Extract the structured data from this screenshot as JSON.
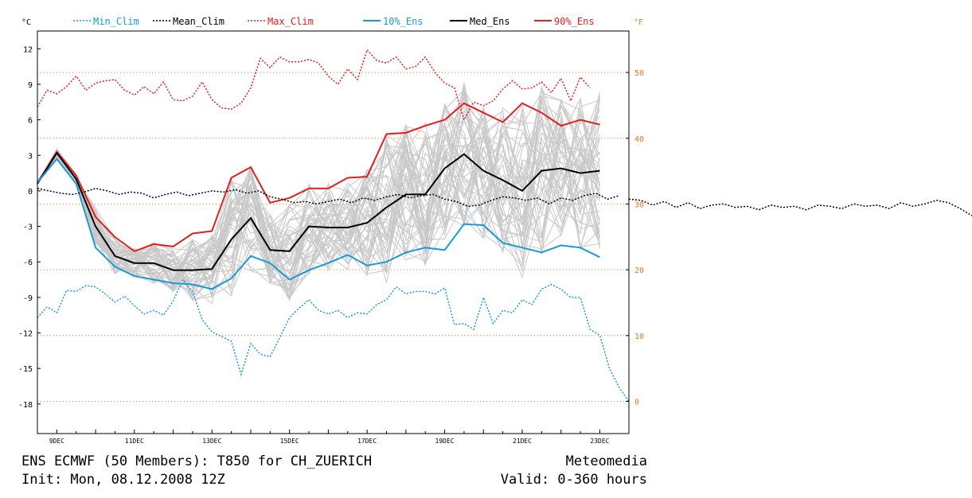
{
  "chart_data": {
    "type": "line",
    "title": "ENS ECMWF (50 Members): T850 for CH_ZUERICH",
    "ylabel_left": "°C",
    "ylabel_right": "°F",
    "ylim": [
      -20.5,
      13.5
    ],
    "xlim": [
      8.5,
      23.75
    ],
    "y_ticks": [
      12,
      9,
      6,
      3,
      0,
      -3,
      -6,
      -9,
      -12,
      -15,
      -18
    ],
    "y_ticks_f": [
      50,
      40,
      30,
      20,
      10,
      0
    ],
    "x_ticks": [
      {
        "label": "9DEC",
        "x": 9
      },
      {
        "label": "11DEC",
        "x": 11
      },
      {
        "label": "13DEC",
        "x": 13
      },
      {
        "label": "15DEC",
        "x": 15
      },
      {
        "label": "17DEC",
        "x": 17
      },
      {
        "label": "19DEC",
        "x": 19
      },
      {
        "label": "21DEC",
        "x": 21
      },
      {
        "label": "23DEC",
        "x": 23
      }
    ],
    "legend": [
      {
        "key": "min_clim",
        "label": "Min_Clim",
        "color": "#1a9ad6",
        "dash": true
      },
      {
        "key": "mean_clim",
        "label": "Mean_Clim",
        "color": "#000000",
        "dash": true
      },
      {
        "key": "max_clim",
        "label": "Max_Clim",
        "color": "#e02020",
        "dash": true
      },
      {
        "key": "p10",
        "label": "10%_Ens",
        "color": "#1a9ad6",
        "dash": false
      },
      {
        "key": "median",
        "label": "Med_Ens",
        "color": "#000000",
        "dash": false
      },
      {
        "key": "p90",
        "label": "90%_Ens",
        "color": "#e02020",
        "dash": false
      }
    ],
    "ens_x": [
      8.5,
      9.0,
      9.5,
      10.0,
      10.5,
      11.0,
      11.5,
      12.0,
      12.5,
      13.0,
      13.5,
      14.0,
      14.5,
      15.0,
      15.5,
      16.0,
      16.5,
      17.0,
      17.5,
      18.0,
      18.5,
      19.0,
      19.5,
      20.0,
      20.5,
      21.0,
      21.5,
      22.0,
      22.5,
      23.0
    ],
    "series": [
      {
        "name": "90%_Ens",
        "values": [
          0.7,
          3.3,
          1.3,
          -2.2,
          -3.9,
          -5.1,
          -4.5,
          -4.7,
          -3.6,
          -3.4,
          1.1,
          2.0,
          -1.0,
          -0.6,
          0.2,
          0.2,
          1.1,
          1.2,
          4.8,
          4.9,
          5.5,
          6.0,
          7.4,
          6.6,
          5.8,
          7.4,
          6.6,
          5.5,
          6.0,
          5.6
        ]
      },
      {
        "name": "Med_Ens",
        "values": [
          0.6,
          3.2,
          1.0,
          -3.0,
          -5.5,
          -6.1,
          -6.1,
          -6.7,
          -6.7,
          -6.6,
          -4.1,
          -2.3,
          -5.0,
          -5.1,
          -3.0,
          -3.1,
          -3.1,
          -2.7,
          -1.4,
          -0.3,
          -0.3,
          1.9,
          3.1,
          1.7,
          0.9,
          0.0,
          1.7,
          1.9,
          1.5,
          1.7
        ]
      },
      {
        "name": "10%_Ens",
        "values": [
          0.7,
          2.7,
          0.6,
          -4.8,
          -6.4,
          -7.2,
          -7.5,
          -7.8,
          -7.9,
          -8.3,
          -7.4,
          -5.5,
          -6.1,
          -7.5,
          -6.7,
          -6.1,
          -5.4,
          -6.3,
          -6.0,
          -5.2,
          -4.8,
          -5.0,
          -2.8,
          -2.9,
          -4.4,
          -4.8,
          -5.2,
          -4.6,
          -4.8,
          -5.6
        ]
      },
      {
        "name": "Max_Clim",
        "values": [
          7.1,
          8.5,
          8.2,
          8.8,
          9.7,
          8.5,
          9.1,
          9.3,
          9.4,
          8.5,
          8.1,
          8.8,
          8.2,
          9.2,
          7.7,
          7.6,
          8.0,
          9.2,
          7.7,
          7.0,
          6.9,
          7.4,
          8.7,
          11.2,
          10.4,
          11.3,
          10.9,
          10.9,
          11.1,
          10.8,
          9.7,
          9.0,
          10.3,
          9.4,
          11.9,
          11.0,
          10.8,
          11.3,
          10.3,
          10.5,
          11.3,
          10.0,
          9.1,
          8.7,
          6.0,
          7.5,
          7.2,
          7.6,
          8.6,
          9.3,
          8.6,
          8.7,
          9.2,
          8.3,
          9.5,
          7.6,
          9.6,
          8.7
        ]
      },
      {
        "name": "Mean_Clim",
        "values": [
          0.2,
          0.0,
          -0.2,
          -0.3,
          -0.1,
          0.2,
          0.0,
          -0.3,
          -0.1,
          -0.2,
          -0.6,
          -0.3,
          -0.1,
          -0.4,
          -0.2,
          0.0,
          -0.1,
          0.1,
          -0.2,
          0.0,
          -0.5,
          -0.7,
          -1.0,
          -0.9,
          -1.1,
          -0.9,
          -0.7,
          -1.0,
          -0.6,
          -0.8,
          -0.5,
          -0.3,
          -0.6,
          -0.4,
          -0.3,
          -0.7,
          -0.9,
          -1.3,
          -1.2,
          -0.8,
          -0.5,
          -0.6,
          -0.8,
          -0.6,
          -1.1,
          -0.6,
          -0.8,
          -0.4,
          -0.2,
          -0.7,
          -0.4
        ]
      },
      {
        "name": "Min_Clim",
        "values": [
          -10.7,
          -9.8,
          -10.3,
          -8.4,
          -8.5,
          -8.0,
          -8.1,
          -8.7,
          -9.4,
          -8.9,
          -9.7,
          -10.4,
          -10.1,
          -10.5,
          -9.3,
          -7.5,
          -8.5,
          -10.9,
          -11.9,
          -12.3,
          -12.7,
          -15.5,
          -12.9,
          -13.8,
          -14.0,
          -12.4,
          -10.7,
          -9.9,
          -9.2,
          -10.1,
          -10.4,
          -10.1,
          -10.7,
          -10.3,
          -10.4,
          -9.6,
          -9.2,
          -8.1,
          -8.7,
          -8.5,
          -8.5,
          -8.7,
          -8.2,
          -11.3,
          -11.2,
          -11.7,
          -9.0,
          -11.2,
          -10.1,
          -10.3,
          -9.2,
          -9.6,
          -8.3,
          -7.9,
          -8.3,
          -9.0,
          -9.0,
          -11.7,
          -12.2,
          -15.0,
          -16.6,
          -17.8
        ]
      }
    ],
    "climate_x_start": 8.5,
    "climate_x_step": 0.25,
    "mean_clim_x_step": 0.3,
    "mean_clim_tail": [
      -0.7,
      -0.8,
      -1.2,
      -0.9,
      -1.4,
      -1.0,
      -1.5,
      -1.2,
      -1.1,
      -1.4,
      -1.3,
      -1.6,
      -1.2,
      -1.4,
      -1.3,
      -1.6,
      -1.2,
      -1.3,
      -1.5,
      -1.1,
      -1.3,
      -1.2,
      -1.5,
      -1.0,
      -1.3,
      -1.1,
      -0.8,
      -1.0,
      -1.5,
      -2.1
    ]
  },
  "footer": {
    "title": "ENS ECMWF (50 Members): T850 for CH_ZUERICH",
    "init": "Init: Mon, 08.12.2008 12Z",
    "brand": "Meteomedia",
    "valid": "Valid: 0-360 hours"
  },
  "colors": {
    "blue": "#1a9ad6",
    "red": "#e02020",
    "black": "#000000",
    "members": "#c8c8c8",
    "gridline": "#e07a20",
    "fahrenheit_axis": "#e07a20"
  }
}
